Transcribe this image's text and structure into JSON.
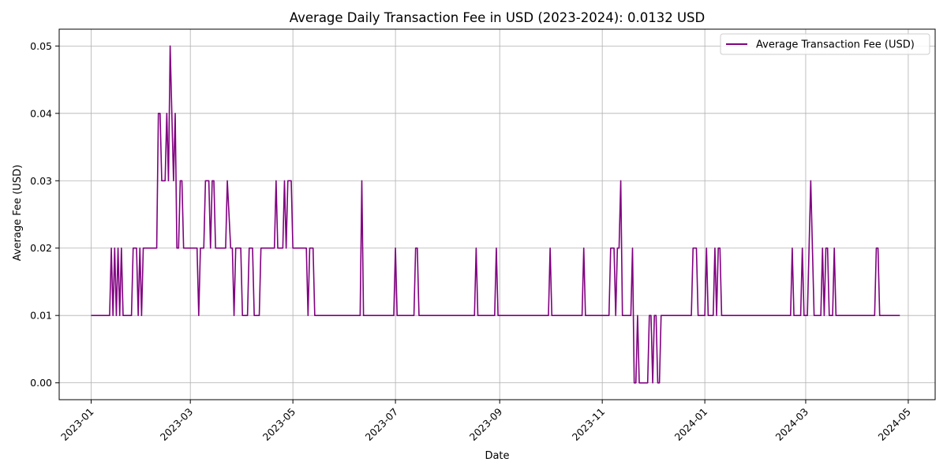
{
  "chart_data": {
    "type": "line",
    "title": "Average Daily Transaction Fee in USD (2023-2024): 0.0132 USD",
    "xlabel": "Date",
    "ylabel": "Average Fee (USD)",
    "xlim": [
      "2022-12-13",
      "2024-05-17"
    ],
    "ylim": [
      -0.0025,
      0.0525
    ],
    "grid": true,
    "legend_position": "top-right",
    "x_ticks": [
      "2023-01",
      "2023-03",
      "2023-05",
      "2023-07",
      "2023-09",
      "2023-11",
      "2024-01",
      "2024-03",
      "2024-05"
    ],
    "y_ticks": [
      "0.00",
      "0.01",
      "0.02",
      "0.03",
      "0.04",
      "0.05"
    ],
    "series": [
      {
        "name": "Average Transaction Fee (USD)",
        "color": "#800080",
        "points": [
          [
            "2023-01-01",
            0.01
          ],
          [
            "2023-01-12",
            0.01
          ],
          [
            "2023-01-13",
            0.02
          ],
          [
            "2023-01-14",
            0.01
          ],
          [
            "2023-01-15",
            0.02
          ],
          [
            "2023-01-16",
            0.01
          ],
          [
            "2023-01-17",
            0.02
          ],
          [
            "2023-01-18",
            0.01
          ],
          [
            "2023-01-19",
            0.02
          ],
          [
            "2023-01-20",
            0.01
          ],
          [
            "2023-01-25",
            0.01
          ],
          [
            "2023-01-26",
            0.02
          ],
          [
            "2023-01-28",
            0.02
          ],
          [
            "2023-01-29",
            0.01
          ],
          [
            "2023-01-30",
            0.02
          ],
          [
            "2023-01-31",
            0.01
          ],
          [
            "2023-02-01",
            0.02
          ],
          [
            "2023-02-09",
            0.02
          ],
          [
            "2023-02-10",
            0.04
          ],
          [
            "2023-02-11",
            0.04
          ],
          [
            "2023-02-12",
            0.03
          ],
          [
            "2023-02-14",
            0.03
          ],
          [
            "2023-02-15",
            0.04
          ],
          [
            "2023-02-16",
            0.03
          ],
          [
            "2023-02-17",
            0.05
          ],
          [
            "2023-02-18",
            0.04
          ],
          [
            "2023-02-19",
            0.03
          ],
          [
            "2023-02-20",
            0.04
          ],
          [
            "2023-02-21",
            0.02
          ],
          [
            "2023-02-22",
            0.02
          ],
          [
            "2023-02-23",
            0.03
          ],
          [
            "2023-02-24",
            0.03
          ],
          [
            "2023-02-25",
            0.02
          ],
          [
            "2023-03-05",
            0.02
          ],
          [
            "2023-03-06",
            0.01
          ],
          [
            "2023-03-07",
            0.02
          ],
          [
            "2023-03-09",
            0.02
          ],
          [
            "2023-03-10",
            0.03
          ],
          [
            "2023-03-12",
            0.03
          ],
          [
            "2023-03-13",
            0.02
          ],
          [
            "2023-03-14",
            0.03
          ],
          [
            "2023-03-15",
            0.03
          ],
          [
            "2023-03-16",
            0.02
          ],
          [
            "2023-03-22",
            0.02
          ],
          [
            "2023-03-23",
            0.03
          ],
          [
            "2023-03-25",
            0.02
          ],
          [
            "2023-03-26",
            0.02
          ],
          [
            "2023-03-27",
            0.01
          ],
          [
            "2023-03-28",
            0.02
          ],
          [
            "2023-03-31",
            0.02
          ],
          [
            "2023-04-01",
            0.01
          ],
          [
            "2023-04-04",
            0.01
          ],
          [
            "2023-04-05",
            0.02
          ],
          [
            "2023-04-07",
            0.02
          ],
          [
            "2023-04-08",
            0.01
          ],
          [
            "2023-04-11",
            0.01
          ],
          [
            "2023-04-12",
            0.02
          ],
          [
            "2023-04-20",
            0.02
          ],
          [
            "2023-04-21",
            0.03
          ],
          [
            "2023-04-22",
            0.02
          ],
          [
            "2023-04-25",
            0.02
          ],
          [
            "2023-04-26",
            0.03
          ],
          [
            "2023-04-27",
            0.02
          ],
          [
            "2023-04-28",
            0.03
          ],
          [
            "2023-04-30",
            0.03
          ],
          [
            "2023-05-01",
            0.02
          ],
          [
            "2023-05-09",
            0.02
          ],
          [
            "2023-05-10",
            0.01
          ],
          [
            "2023-05-11",
            0.02
          ],
          [
            "2023-05-13",
            0.02
          ],
          [
            "2023-05-14",
            0.01
          ],
          [
            "2023-06-10",
            0.01
          ],
          [
            "2023-06-11",
            0.03
          ],
          [
            "2023-06-12",
            0.01
          ],
          [
            "2023-06-30",
            0.01
          ],
          [
            "2023-07-01",
            0.02
          ],
          [
            "2023-07-02",
            0.01
          ],
          [
            "2023-07-12",
            0.01
          ],
          [
            "2023-07-13",
            0.02
          ],
          [
            "2023-07-14",
            0.02
          ],
          [
            "2023-07-15",
            0.01
          ],
          [
            "2023-08-17",
            0.01
          ],
          [
            "2023-08-18",
            0.02
          ],
          [
            "2023-08-19",
            0.01
          ],
          [
            "2023-08-29",
            0.01
          ],
          [
            "2023-08-30",
            0.02
          ],
          [
            "2023-08-31",
            0.01
          ],
          [
            "2023-09-30",
            0.01
          ],
          [
            "2023-10-01",
            0.02
          ],
          [
            "2023-10-02",
            0.01
          ],
          [
            "2023-10-20",
            0.01
          ],
          [
            "2023-10-21",
            0.02
          ],
          [
            "2023-10-22",
            0.01
          ],
          [
            "2023-11-05",
            0.01
          ],
          [
            "2023-11-06",
            0.02
          ],
          [
            "2023-11-08",
            0.02
          ],
          [
            "2023-11-09",
            0.01
          ],
          [
            "2023-11-10",
            0.02
          ],
          [
            "2023-11-11",
            0.02
          ],
          [
            "2023-11-12",
            0.03
          ],
          [
            "2023-11-13",
            0.01
          ],
          [
            "2023-11-18",
            0.01
          ],
          [
            "2023-11-19",
            0.02
          ],
          [
            "2023-11-20",
            0.0
          ],
          [
            "2023-11-21",
            0.0
          ],
          [
            "2023-11-22",
            0.01
          ],
          [
            "2023-11-23",
            0.0
          ],
          [
            "2023-11-28",
            0.0
          ],
          [
            "2023-11-29",
            0.01
          ],
          [
            "2023-11-30",
            0.01
          ],
          [
            "2023-12-01",
            0.0
          ],
          [
            "2023-12-02",
            0.01
          ],
          [
            "2023-12-03",
            0.01
          ],
          [
            "2023-12-04",
            0.0
          ],
          [
            "2023-12-05",
            0.0
          ],
          [
            "2023-12-06",
            0.01
          ],
          [
            "2023-12-24",
            0.01
          ],
          [
            "2023-12-25",
            0.02
          ],
          [
            "2023-12-27",
            0.02
          ],
          [
            "2023-12-28",
            0.01
          ],
          [
            "2024-01-01",
            0.01
          ],
          [
            "2024-01-02",
            0.02
          ],
          [
            "2024-01-03",
            0.01
          ],
          [
            "2024-01-06",
            0.01
          ],
          [
            "2024-01-07",
            0.02
          ],
          [
            "2024-01-08",
            0.01
          ],
          [
            "2024-01-09",
            0.02
          ],
          [
            "2024-01-10",
            0.02
          ],
          [
            "2024-01-11",
            0.01
          ],
          [
            "2024-02-21",
            0.01
          ],
          [
            "2024-02-22",
            0.02
          ],
          [
            "2024-02-23",
            0.01
          ],
          [
            "2024-02-27",
            0.01
          ],
          [
            "2024-02-28",
            0.02
          ],
          [
            "2024-02-29",
            0.01
          ],
          [
            "2024-03-02",
            0.01
          ],
          [
            "2024-03-04",
            0.03
          ],
          [
            "2024-03-06",
            0.01
          ],
          [
            "2024-03-10",
            0.01
          ],
          [
            "2024-03-11",
            0.02
          ],
          [
            "2024-03-12",
            0.01
          ],
          [
            "2024-03-13",
            0.02
          ],
          [
            "2024-03-14",
            0.02
          ],
          [
            "2024-03-15",
            0.01
          ],
          [
            "2024-03-17",
            0.01
          ],
          [
            "2024-03-18",
            0.02
          ],
          [
            "2024-03-19",
            0.01
          ],
          [
            "2024-04-11",
            0.01
          ],
          [
            "2024-04-12",
            0.02
          ],
          [
            "2024-04-13",
            0.02
          ],
          [
            "2024-04-14",
            0.01
          ],
          [
            "2024-04-26",
            0.01
          ]
        ]
      }
    ]
  }
}
